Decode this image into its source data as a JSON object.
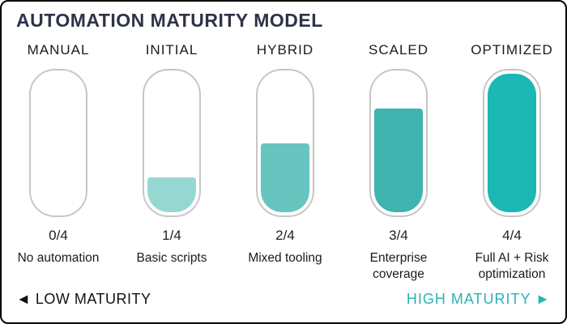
{
  "title": "AUTOMATION MATURITY MODEL",
  "columns": [
    {
      "label": "MANUAL",
      "fraction": "0/4",
      "description": "No automation",
      "fill_percent": 0,
      "fill_color": "#ffffff"
    },
    {
      "label": "INITIAL",
      "fraction": "1/4",
      "description": "Basic scripts",
      "fill_percent": 25,
      "fill_color": "#97d7d1"
    },
    {
      "label": "HYBRID",
      "fraction": "2/4",
      "description": "Mixed tooling",
      "fill_percent": 50,
      "fill_color": "#68c4bf"
    },
    {
      "label": "SCALED",
      "fraction": "3/4",
      "description": "Enterprise coverage",
      "fill_percent": 75,
      "fill_color": "#3fb3ae"
    },
    {
      "label": "OPTIMIZED",
      "fraction": "4/4",
      "description": "Full AI + Risk optimization",
      "fill_percent": 100,
      "fill_color": "#1bb8b4"
    }
  ],
  "footer": {
    "low_label": "◄ LOW MATURITY",
    "high_label": "HIGH MATURITY ►",
    "high_color": "#2ab3b6"
  },
  "colors": {
    "title": "#2d3348",
    "pill_border": "#c6c6c6",
    "canvas_border": "#000000",
    "background": "#ffffff"
  },
  "chart_data": {
    "type": "bar",
    "title": "AUTOMATION MATURITY MODEL",
    "categories": [
      "MANUAL",
      "INITIAL",
      "HYBRID",
      "SCALED",
      "OPTIMIZED"
    ],
    "values": [
      0,
      1,
      2,
      3,
      4
    ],
    "value_max": 4,
    "value_labels": [
      "0/4",
      "1/4",
      "2/4",
      "3/4",
      "4/4"
    ],
    "annotations": [
      "No automation",
      "Basic scripts",
      "Mixed tooling",
      "Enterprise coverage",
      "Full AI + Risk optimization"
    ],
    "axis_low_label": "◄ LOW MATURITY",
    "axis_high_label": "HIGH MATURITY ►",
    "bar_colors": [
      "#ffffff",
      "#97d7d1",
      "#68c4bf",
      "#3fb3ae",
      "#1bb8b4"
    ],
    "orientation": "vertical",
    "grid": false,
    "legend": false
  }
}
